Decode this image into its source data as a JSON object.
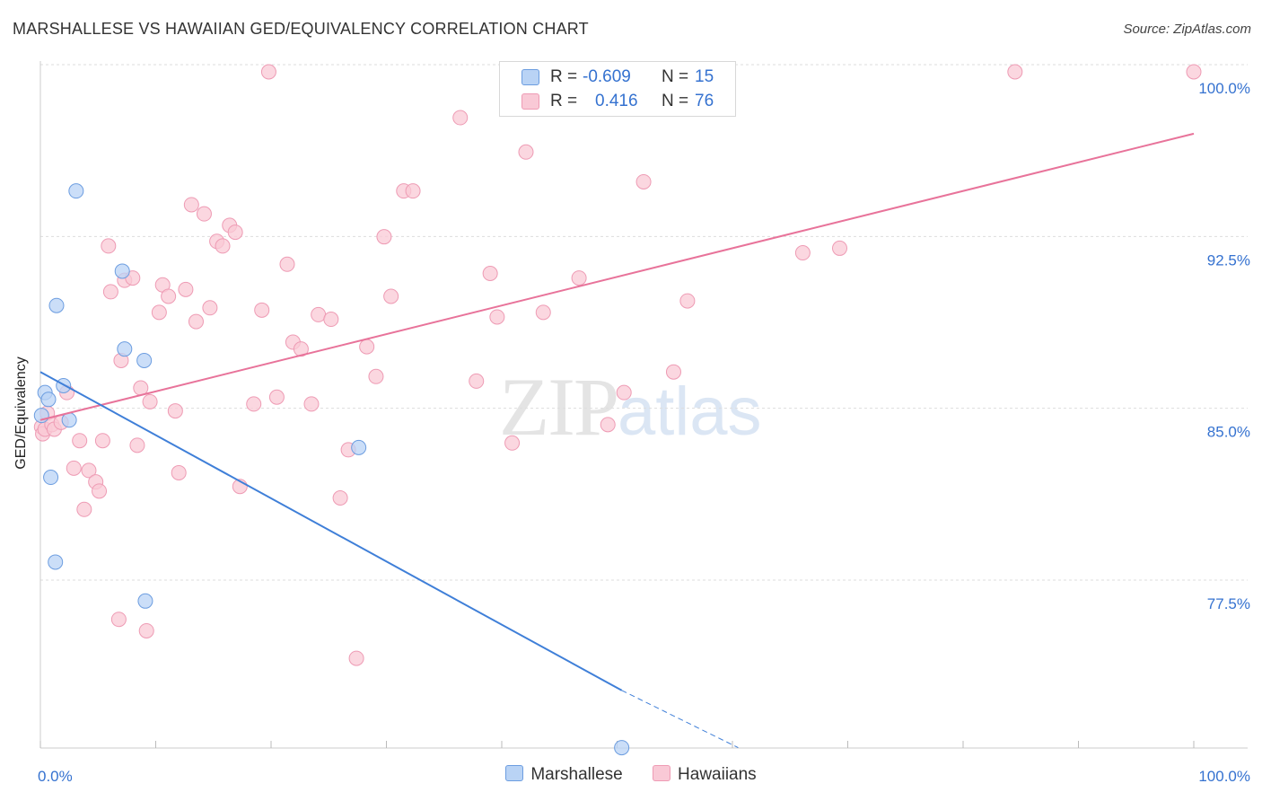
{
  "title": "MARSHALLESE VS HAWAIIAN GED/EQUIVALENCY CORRELATION CHART",
  "source": "Source: ZipAtlas.com",
  "watermark": {
    "zip": "ZIP",
    "atlas": "atlas"
  },
  "stats": {
    "rows": [
      {
        "series": "Marshallese",
        "r_label": "R =",
        "r_value": "-0.609",
        "n_label": "N =",
        "n_value": "15"
      },
      {
        "series": "Hawaiians",
        "r_label": "R =",
        "r_value": "0.416",
        "n_label": "N =",
        "n_value": "76"
      }
    ]
  },
  "chart_data": {
    "type": "scatter",
    "title": "MARSHALLESE VS HAWAIIAN GED/EQUIVALENCY CORRELATION CHART",
    "xlabel": "",
    "ylabel": "GED/Equivalency",
    "x_tick_labels": [
      "0.0%",
      "100.0%"
    ],
    "y_tick_labels": [
      "100.0%",
      "92.5%",
      "85.0%",
      "77.5%"
    ],
    "y_ticks": [
      100.0,
      92.5,
      85.0,
      77.5
    ],
    "xlim": [
      0,
      100
    ],
    "ylim": [
      70.5,
      101.2
    ],
    "grid": "horizontal dashed",
    "legend_position": "bottom-center",
    "colors": {
      "marshallese": "#3f7fd8",
      "hawaiians": "#e8739a"
    },
    "series": [
      {
        "name": "Marshallese",
        "color_fill": "#b9d3f5",
        "color_stroke": "#6c9de0",
        "x": [
          0.1,
          0.4,
          0.7,
          0.9,
          1.4,
          2.0,
          2.5,
          3.1,
          7.1,
          7.3,
          9.0,
          1.3,
          9.1,
          27.6,
          50.4
        ],
        "y": [
          85.0,
          86.0,
          85.7,
          82.3,
          89.8,
          86.3,
          84.8,
          94.8,
          91.3,
          87.9,
          87.4,
          78.6,
          76.9,
          83.6,
          70.5
        ],
        "trend": {
          "x": [
            0,
            50.4
          ],
          "y": [
            86.9,
            73.0
          ]
        },
        "trend_extension": {
          "x": [
            50.4,
            60.5
          ],
          "y": [
            73.0,
            70.5
          ]
        }
      },
      {
        "name": "Hawaiians",
        "color_fill": "#f9c9d6",
        "color_stroke": "#ee9bb4",
        "x": [
          0.1,
          0.2,
          0.4,
          0.6,
          1.0,
          1.2,
          1.8,
          2.3,
          2.9,
          3.4,
          3.8,
          4.2,
          4.8,
          5.1,
          5.4,
          5.9,
          6.1,
          6.8,
          7.0,
          7.3,
          8.0,
          8.4,
          8.7,
          9.2,
          9.5,
          10.3,
          10.6,
          11.1,
          11.7,
          12.0,
          12.6,
          13.1,
          13.5,
          14.2,
          14.7,
          15.3,
          15.8,
          16.4,
          16.9,
          17.3,
          18.5,
          19.2,
          19.8,
          20.5,
          21.4,
          21.9,
          22.6,
          23.5,
          24.1,
          25.2,
          26.0,
          26.7,
          27.4,
          28.3,
          29.1,
          29.8,
          30.4,
          31.5,
          32.3,
          36.4,
          37.8,
          39.0,
          39.6,
          40.9,
          42.1,
          43.6,
          46.7,
          49.2,
          50.6,
          52.3,
          54.9,
          56.1,
          66.1,
          69.3,
          84.5,
          100.0
        ],
        "y": [
          84.5,
          84.2,
          84.4,
          85.1,
          84.6,
          84.4,
          84.7,
          86.0,
          82.7,
          83.9,
          80.9,
          82.6,
          82.1,
          81.7,
          83.9,
          92.4,
          90.4,
          76.1,
          87.4,
          90.9,
          91.0,
          83.7,
          86.2,
          75.6,
          85.6,
          89.5,
          90.7,
          90.2,
          85.2,
          82.5,
          90.5,
          94.2,
          89.1,
          93.8,
          89.7,
          92.6,
          92.4,
          93.3,
          93.0,
          81.9,
          85.5,
          89.6,
          100.0,
          85.8,
          91.6,
          88.2,
          87.9,
          85.5,
          89.4,
          89.2,
          81.4,
          83.5,
          74.4,
          88.0,
          86.7,
          92.8,
          90.2,
          94.8,
          94.8,
          98.0,
          86.5,
          91.2,
          89.3,
          83.8,
          96.5,
          89.5,
          91.0,
          84.6,
          86.0,
          95.2,
          86.9,
          90.0,
          92.1,
          92.3,
          100.0,
          100.0
        ],
        "trend": {
          "x": [
            0,
            100
          ],
          "y": [
            84.8,
            97.3
          ]
        }
      }
    ]
  }
}
